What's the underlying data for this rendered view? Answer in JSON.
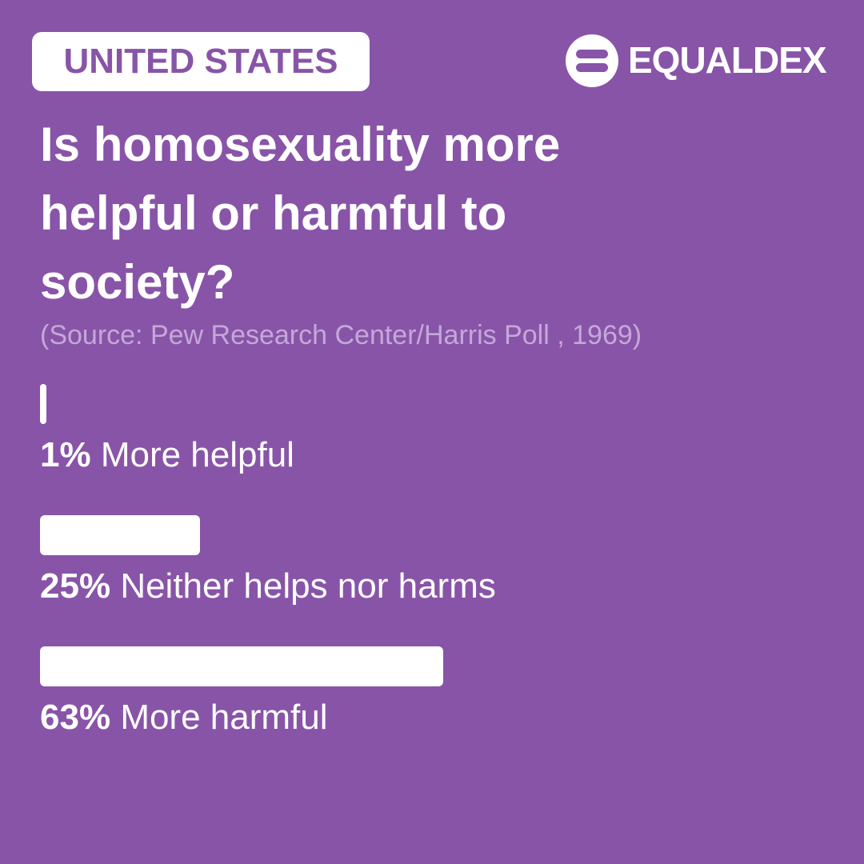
{
  "header": {
    "badge": "UNITED STATES",
    "brand": "EQUALDEX"
  },
  "chart_data": {
    "type": "bar",
    "title": "Is homosexuality more helpful or harmful to society?",
    "subtitle": "(Source: Pew Research Center/Harris Poll , 1969)",
    "categories": [
      "More helpful",
      "Neither helps nor harms",
      "More harmful"
    ],
    "values": [
      1,
      25,
      63
    ],
    "value_labels": [
      "1%",
      "25%",
      "63%"
    ],
    "color": "#ffffff"
  }
}
